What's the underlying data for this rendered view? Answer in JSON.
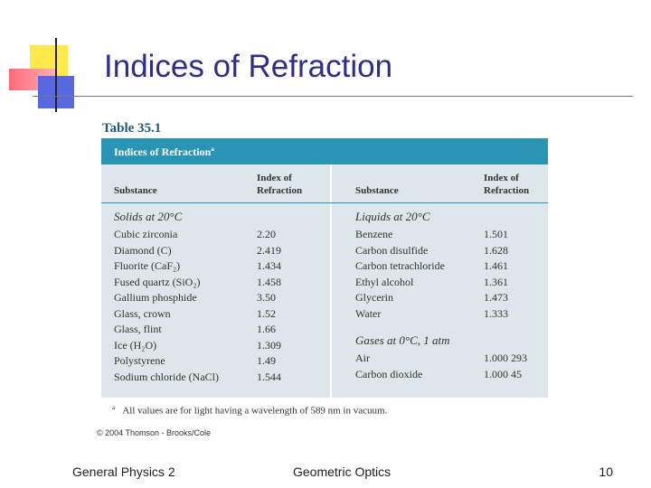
{
  "title": "Indices of Refraction",
  "table": {
    "caption": "Table 35.1",
    "title": "Indices of Refraction",
    "footnote_marker": "a",
    "columns": [
      "Substance",
      "Index of Refraction",
      "Substance",
      "Index of Refraction"
    ],
    "left": [
      {
        "heading": "Solids at 20°C",
        "rows": [
          [
            "Cubic zirconia",
            "2.20"
          ],
          [
            "Diamond (C)",
            "2.419"
          ],
          [
            "Fluorite (CaF₂)",
            "1.434"
          ],
          [
            "Fused quartz (SiO₂)",
            "1.458"
          ],
          [
            "Gallium phosphide",
            "3.50"
          ],
          [
            "Glass, crown",
            "1.52"
          ],
          [
            "Glass, flint",
            "1.66"
          ],
          [
            "Ice (H₂O)",
            "1.309"
          ],
          [
            "Polystyrene",
            "1.49"
          ],
          [
            "Sodium chloride (NaCl)",
            "1.544"
          ]
        ]
      }
    ],
    "right": [
      {
        "heading": "Liquids at 20°C",
        "rows": [
          [
            "Benzene",
            "1.501"
          ],
          [
            "Carbon disulfide",
            "1.628"
          ],
          [
            "Carbon tetrachloride",
            "1.461"
          ],
          [
            "Ethyl alcohol",
            "1.361"
          ],
          [
            "Glycerin",
            "1.473"
          ],
          [
            "Water",
            "1.333"
          ]
        ]
      },
      {
        "heading": "Gases at 0°C, 1 atm",
        "rows": [
          [
            "Air",
            "1.000 293"
          ],
          [
            "Carbon dioxide",
            "1.000 45"
          ]
        ]
      }
    ],
    "footnote": "All values are for light having a wavelength of 589 nm in vacuum."
  },
  "copyright": "© 2004 Thomson - Brooks/Cole",
  "footer": {
    "left": "General Physics 2",
    "center": "Geometric Optics",
    "right": "10"
  }
}
